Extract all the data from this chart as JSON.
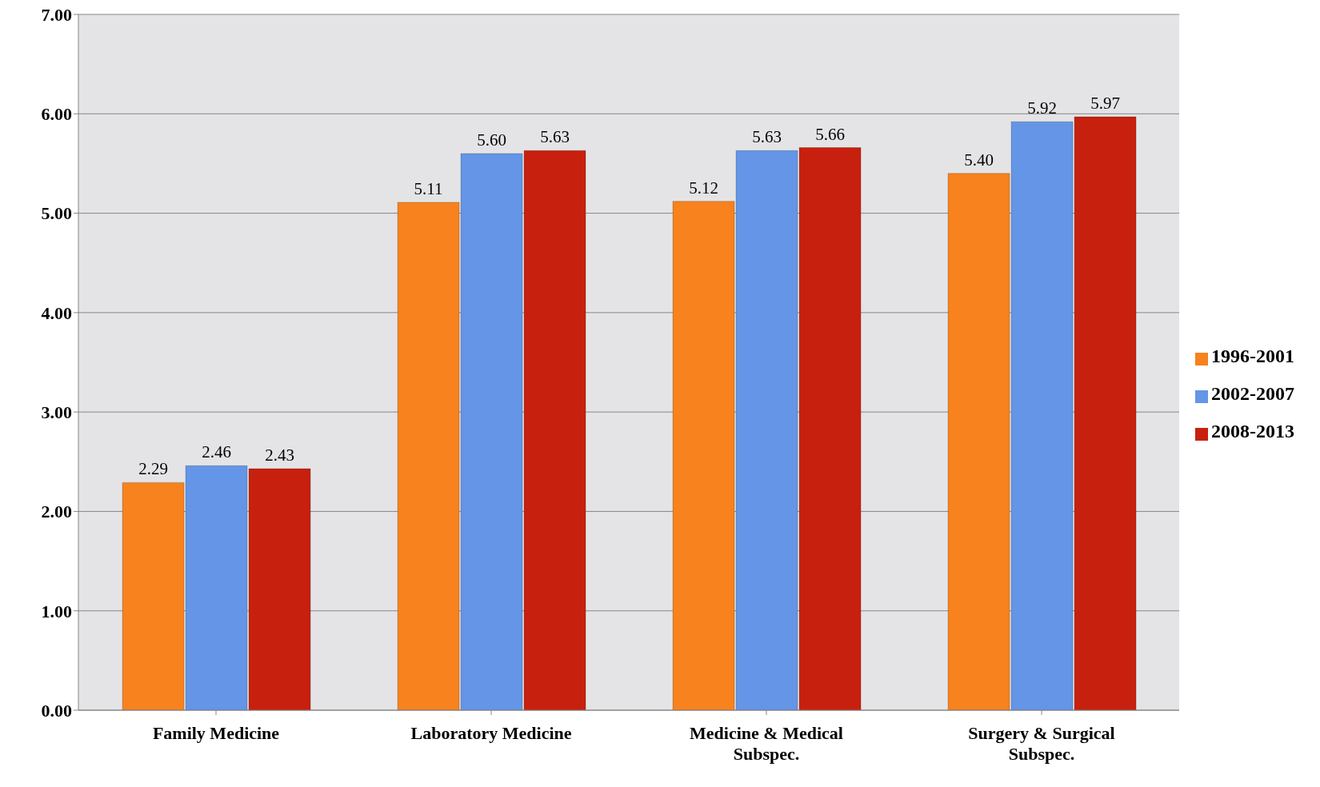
{
  "chart_data": {
    "type": "bar",
    "categories": [
      "Family Medicine",
      "Laboratory Medicine",
      "Medicine & Medical Subspec.",
      "Surgery & Surgical Subspec."
    ],
    "series": [
      {
        "name": "1996-2001",
        "color": "#f7821e",
        "values": [
          2.29,
          5.11,
          5.12,
          5.4
        ],
        "value_labels": [
          "2.29",
          "5.11",
          "5.12",
          "5.40"
        ]
      },
      {
        "name": "2002-2007",
        "color": "#6495e6",
        "values": [
          2.46,
          5.6,
          5.63,
          5.92
        ],
        "value_labels": [
          "2.46",
          "5.60",
          "5.63",
          "5.92"
        ]
      },
      {
        "name": "2008-2013",
        "color": "#c8200e",
        "values": [
          2.43,
          5.63,
          5.66,
          5.97
        ],
        "value_labels": [
          "2.43",
          "5.63",
          "5.66",
          "5.97"
        ]
      }
    ],
    "ylim": [
      0,
      7
    ],
    "yticks": [
      {
        "value": 0,
        "label": "0.00"
      },
      {
        "value": 1,
        "label": "1.00"
      },
      {
        "value": 2,
        "label": "2.00"
      },
      {
        "value": 3,
        "label": "3.00"
      },
      {
        "value": 4,
        "label": "4.00"
      },
      {
        "value": 5,
        "label": "5.00"
      },
      {
        "value": 6,
        "label": "6.00"
      },
      {
        "value": 7,
        "label": "7.00"
      }
    ],
    "grid": "y",
    "legend": "right"
  }
}
